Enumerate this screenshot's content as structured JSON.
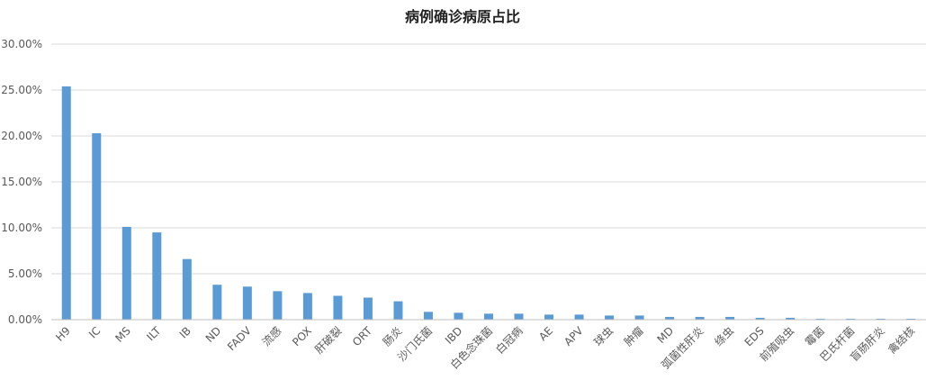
{
  "chart_data": {
    "type": "bar",
    "title": "病例确诊病原占比",
    "xlabel": "",
    "ylabel": "",
    "ylim": [
      0,
      30
    ],
    "yticks": [
      "0.00%",
      "5.00%",
      "10.00%",
      "15.00%",
      "20.00%",
      "25.00%",
      "30.00%"
    ],
    "grid": true,
    "legend": "none",
    "bar_color": "#5B9BD5",
    "categories": [
      "H9",
      "IC",
      "MS",
      "ILT",
      "IB",
      "ND",
      "FADV",
      "流感",
      "POX",
      "肝破裂",
      "ORT",
      "肠炎",
      "沙门氏菌",
      "IBD",
      "白色念珠菌",
      "白冠病",
      "AE",
      "APV",
      "球虫",
      "肿瘤",
      "MD",
      "弧菌性肝炎",
      "绦虫",
      "EDS",
      "前殖吸虫",
      "霉菌",
      "巴氏杆菌",
      "盲肠肝炎",
      "禽结核"
    ],
    "values": [
      25.4,
      20.3,
      10.1,
      9.5,
      6.6,
      3.8,
      3.6,
      3.1,
      2.9,
      2.6,
      2.4,
      2.0,
      0.85,
      0.75,
      0.65,
      0.65,
      0.55,
      0.55,
      0.45,
      0.45,
      0.3,
      0.3,
      0.3,
      0.2,
      0.2,
      0.1,
      0.1,
      0.1,
      0.1
    ]
  }
}
